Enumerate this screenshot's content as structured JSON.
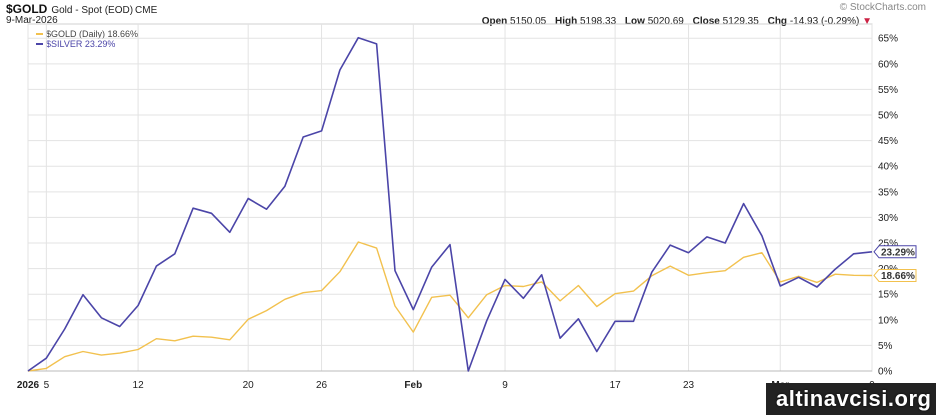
{
  "header": {
    "symbol": "$GOLD",
    "description": "Gold - Spot (EOD)",
    "exchange": "CME",
    "date": "9-Mar-2026",
    "brand": "© StockCharts.com",
    "ohlc": [
      {
        "label": "Open",
        "value": "5150.05"
      },
      {
        "label": "High",
        "value": "5198.33"
      },
      {
        "label": "Low",
        "value": "5020.69"
      },
      {
        "label": "Close",
        "value": "5129.35"
      },
      {
        "label": "Chg",
        "value": "-14.93 (-0.29%)"
      }
    ],
    "chg_arrow": "▼",
    "chg_color": "#cc2244"
  },
  "legend": {
    "gold": "$GOLD (Daily) 18.66%",
    "silver": "$SILVER 23.29%"
  },
  "watermark": "altinavcisi.org",
  "chart_data": {
    "type": "line",
    "x": [
      "2026-01-02",
      "2026-01-05",
      "2026-01-06",
      "2026-01-07",
      "2026-01-08",
      "2026-01-09",
      "2026-01-12",
      "2026-01-13",
      "2026-01-14",
      "2026-01-15",
      "2026-01-16",
      "2026-01-19",
      "2026-01-20",
      "2026-01-21",
      "2026-01-22",
      "2026-01-23",
      "2026-01-26",
      "2026-01-27",
      "2026-01-28",
      "2026-01-29",
      "2026-01-30",
      "2026-02-02",
      "2026-02-03",
      "2026-02-04",
      "2026-02-05",
      "2026-02-06",
      "2026-02-09",
      "2026-02-10",
      "2026-02-11",
      "2026-02-12",
      "2026-02-13",
      "2026-02-16",
      "2026-02-17",
      "2026-02-18",
      "2026-02-19",
      "2026-02-20",
      "2026-02-23",
      "2026-02-24",
      "2026-02-25",
      "2026-02-26",
      "2026-02-27",
      "2026-03-02",
      "2026-03-03",
      "2026-03-04",
      "2026-03-05",
      "2026-03-06",
      "2026-03-09"
    ],
    "series": [
      {
        "name": "$GOLD (Daily) 18.66%",
        "color": "#f2c14e",
        "values": [
          0,
          0.5,
          2.8,
          3.8,
          3.1,
          3.5,
          4.2,
          6.3,
          5.9,
          6.8,
          6.6,
          6.1,
          10.1,
          11.8,
          14.0,
          15.3,
          15.7,
          19.4,
          25.2,
          24.0,
          12.7,
          7.6,
          14.4,
          14.8,
          10.4,
          14.9,
          16.7,
          16.5,
          17.4,
          13.7,
          16.7,
          12.6,
          15.1,
          15.6,
          18.6,
          20.5,
          18.7,
          19.2,
          19.6,
          22.2,
          23.1,
          17.4,
          18.5,
          17.3,
          18.9,
          18.7,
          18.66
        ]
      },
      {
        "name": "$SILVER 23.29%",
        "color": "#4b45a8",
        "values": [
          0,
          2.5,
          8.2,
          14.9,
          10.4,
          8.7,
          12.8,
          20.5,
          22.9,
          31.8,
          30.8,
          27.1,
          33.7,
          31.6,
          36.1,
          45.7,
          46.9,
          58.8,
          65.1,
          63.9,
          19.6,
          12.0,
          20.3,
          24.7,
          0.0,
          9.8,
          17.9,
          14.2,
          18.8,
          6.4,
          10.2,
          3.8,
          9.7,
          9.7,
          19.3,
          24.6,
          23.1,
          26.2,
          25.0,
          32.7,
          26.4,
          16.6,
          18.3,
          16.4,
          19.9,
          22.9,
          23.29
        ]
      }
    ],
    "last_labels": [
      "23.29%",
      "18.66%"
    ],
    "y_ticks": [
      "0%",
      "5%",
      "10%",
      "15%",
      "20%",
      "25%",
      "30%",
      "35%",
      "40%",
      "45%",
      "50%",
      "55%",
      "60%",
      "65%"
    ],
    "y_tick_values": [
      0,
      5,
      10,
      15,
      20,
      25,
      30,
      35,
      40,
      45,
      50,
      55,
      60,
      65
    ],
    "x_ticks": [
      {
        "label": "2026",
        "index": 0
      },
      {
        "label": "5",
        "index": 1
      },
      {
        "label": "12",
        "index": 6
      },
      {
        "label": "20",
        "index": 12
      },
      {
        "label": "26",
        "index": 16
      },
      {
        "label": "Feb",
        "index": 21
      },
      {
        "label": "9",
        "index": 26
      },
      {
        "label": "17",
        "index": 32
      },
      {
        "label": "23",
        "index": 36
      },
      {
        "label": "Mar",
        "index": 41
      },
      {
        "label": "9",
        "index": 46
      }
    ],
    "ylim": [
      0,
      67
    ],
    "grid": true,
    "legend_position": "top-left"
  }
}
